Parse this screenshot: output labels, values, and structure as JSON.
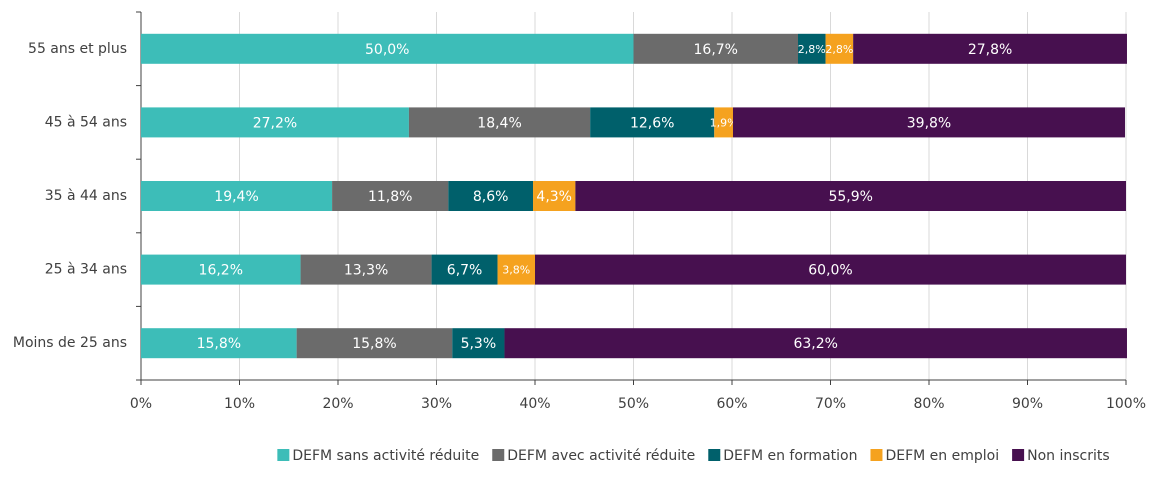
{
  "chart_data": {
    "type": "stacked-barh",
    "categories": [
      "55 ans et plus",
      "45 à 54 ans",
      "35 à 44 ans",
      "25 à 34 ans",
      "Moins de 25 ans"
    ],
    "series": [
      {
        "name": "DEFM sans activité réduite",
        "color": "#3dbdb8",
        "values": [
          50.0,
          27.2,
          19.4,
          16.2,
          15.8
        ],
        "value_labels": [
          "50,0%",
          "27,2%",
          "19,4%",
          "16,2%",
          "15,8%"
        ]
      },
      {
        "name": "DEFM avec activité réduite",
        "color": "#6b6b6b",
        "values": [
          16.7,
          18.4,
          11.8,
          13.3,
          15.8
        ],
        "value_labels": [
          "16,7%",
          "18,4%",
          "11,8%",
          "13,3%",
          "15,8%"
        ]
      },
      {
        "name": "DEFM en formation",
        "color": "#00606b",
        "values": [
          2.8,
          12.6,
          8.6,
          6.7,
          5.3
        ],
        "value_labels": [
          "2,8%",
          "12,6%",
          "8,6%",
          "6,7%",
          "5,3%"
        ]
      },
      {
        "name": "DEFM en emploi",
        "color": "#f5a21f",
        "values": [
          2.8,
          1.9,
          4.3,
          3.8,
          null
        ],
        "value_labels": [
          "2,8%",
          "1,9%",
          "4,3%",
          "3,8%",
          null
        ]
      },
      {
        "name": "Non inscrits",
        "color": "#47104f",
        "values": [
          27.8,
          39.8,
          55.9,
          60.0,
          63.2
        ],
        "value_labels": [
          "27,8%",
          "39,8%",
          "55,9%",
          "60,0%",
          "63,2%"
        ]
      }
    ],
    "xlim": [
      0,
      100
    ],
    "xticks": [
      {
        "value": 0,
        "label": "0%"
      },
      {
        "value": 10,
        "label": "10%"
      },
      {
        "value": 20,
        "label": "20%"
      },
      {
        "value": 30,
        "label": "30%"
      },
      {
        "value": 40,
        "label": "40%"
      },
      {
        "value": 50,
        "label": "50%"
      },
      {
        "value": 60,
        "label": "60%"
      },
      {
        "value": 70,
        "label": "70%"
      },
      {
        "value": 80,
        "label": "80%"
      },
      {
        "value": 90,
        "label": "90%"
      },
      {
        "value": 100,
        "label": "100%"
      }
    ],
    "grid": true,
    "legend": "bottom"
  }
}
